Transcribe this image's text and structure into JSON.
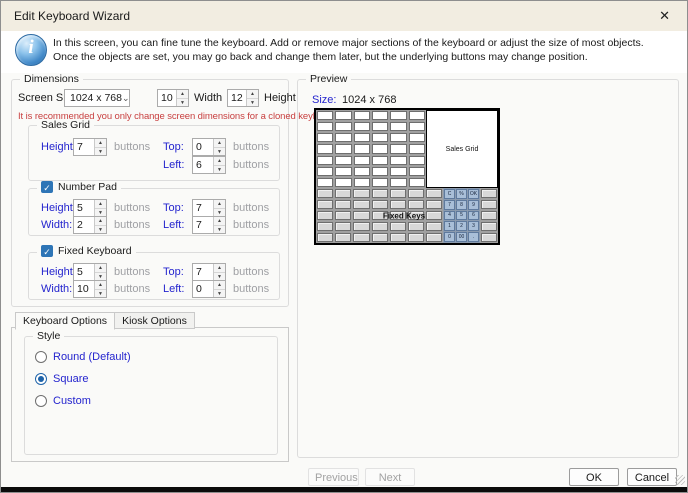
{
  "window": {
    "title": "Edit Keyboard Wizard"
  },
  "icons": {
    "close": "✕",
    "check": "✓",
    "chevron_down": "⌄",
    "spinner_up": "▲",
    "spinner_down": "▼"
  },
  "colors": {
    "label_blue": "#2424CE",
    "warning_red": "#C84040",
    "checkbox_blue": "#2E75B6",
    "titlebar_bg": "#F2EDE1",
    "numpad_key_bg": "#A9BFD8"
  },
  "intro": {
    "text": "In this screen, you can fine tune the keyboard. Add or remove major sections of the keyboard or adjust the size of most objects. Once the objects are set, you may go back and change them later, but the underlying buttons may change position."
  },
  "dimensions": {
    "label": "Dimensions",
    "units": "buttons",
    "screen_size": {
      "label": "Screen Size",
      "value": "1024 x 768"
    },
    "width": {
      "value": "10",
      "label": "Width"
    },
    "height": {
      "value": "12",
      "label": "Height"
    },
    "warning": "It is recommended you only change screen dimensions for a cloned keyboard",
    "sales_grid": {
      "label": "Sales Grid",
      "height": {
        "label": "Height:",
        "value": "7"
      },
      "top": {
        "label": "Top:",
        "value": "0"
      },
      "left": {
        "label": "Left:",
        "value": "6"
      }
    },
    "number_pad": {
      "label": "Number Pad",
      "checked": true,
      "height": {
        "label": "Height:",
        "value": "5"
      },
      "width": {
        "label": "Width:",
        "value": "2"
      },
      "top": {
        "label": "Top:",
        "value": "7"
      },
      "left": {
        "label": "Left:",
        "value": "7"
      }
    },
    "fixed_keyboard": {
      "label": "Fixed Keyboard",
      "checked": true,
      "height": {
        "label": "Height:",
        "value": "5"
      },
      "width": {
        "label": "Width:",
        "value": "10"
      },
      "top": {
        "label": "Top:",
        "value": "7"
      },
      "left": {
        "label": "Left:",
        "value": "0"
      }
    }
  },
  "tabs": [
    {
      "label": "Keyboard Options",
      "active": true
    },
    {
      "label": "Kiosk Options",
      "active": false
    }
  ],
  "style_group": {
    "label": "Style",
    "options": [
      {
        "label": "Round (Default)",
        "selected": false
      },
      {
        "label": "Square",
        "selected": true
      },
      {
        "label": "Custom",
        "selected": false
      }
    ]
  },
  "preview": {
    "label": "Preview",
    "size_label": "Size:",
    "size_value": "1024 x 768",
    "sales_grid_label": "Sales Grid",
    "fixed_keys_label": "Fixed Keys",
    "grid": {
      "columns": 10,
      "top_rows": 7,
      "white_cols": 6,
      "bottom_rows": 5
    },
    "numpad_keys": [
      [
        "C",
        "%",
        "OK"
      ],
      [
        "7",
        "8",
        "9"
      ],
      [
        "4",
        "5",
        "6"
      ],
      [
        "1",
        "2",
        "3"
      ],
      [
        "0",
        "00",
        "."
      ]
    ]
  },
  "footer": {
    "previous": "Previous",
    "next": "Next",
    "ok": "OK",
    "cancel": "Cancel"
  }
}
